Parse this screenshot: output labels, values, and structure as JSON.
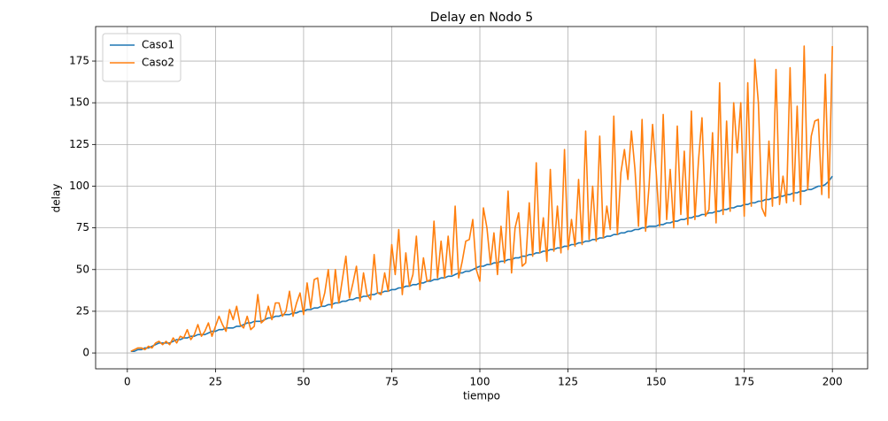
{
  "chart_data": {
    "type": "line",
    "title": "Delay en Nodo 5",
    "xlabel": "tiempo",
    "ylabel": "delay",
    "x": [
      1,
      2,
      3,
      4,
      5,
      6,
      7,
      8,
      9,
      10,
      11,
      12,
      13,
      14,
      15,
      16,
      17,
      18,
      19,
      20,
      21,
      22,
      23,
      24,
      25,
      26,
      27,
      28,
      29,
      30,
      31,
      32,
      33,
      34,
      35,
      36,
      37,
      38,
      39,
      40,
      41,
      42,
      43,
      44,
      45,
      46,
      47,
      48,
      49,
      50,
      51,
      52,
      53,
      54,
      55,
      56,
      57,
      58,
      59,
      60,
      61,
      62,
      63,
      64,
      65,
      66,
      67,
      68,
      69,
      70,
      71,
      72,
      73,
      74,
      75,
      76,
      77,
      78,
      79,
      80,
      81,
      82,
      83,
      84,
      85,
      86,
      87,
      88,
      89,
      90,
      91,
      92,
      93,
      94,
      95,
      96,
      97,
      98,
      99,
      100,
      101,
      102,
      103,
      104,
      105,
      106,
      107,
      108,
      109,
      110,
      111,
      112,
      113,
      114,
      115,
      116,
      117,
      118,
      119,
      120,
      121,
      122,
      123,
      124,
      125,
      126,
      127,
      128,
      129,
      130,
      131,
      132,
      133,
      134,
      135,
      136,
      137,
      138,
      139,
      140,
      141,
      142,
      143,
      144,
      145,
      146,
      147,
      148,
      149,
      150,
      151,
      152,
      153,
      154,
      155,
      156,
      157,
      158,
      159,
      160,
      161,
      162,
      163,
      164,
      165,
      166,
      167,
      168,
      169,
      170,
      171,
      172,
      173,
      174,
      175,
      176,
      177,
      178,
      179,
      180,
      181,
      182,
      183,
      184,
      185,
      186,
      187,
      188,
      189,
      190,
      191,
      192,
      193,
      194,
      195,
      196,
      197,
      198,
      199,
      200
    ],
    "series": [
      {
        "name": "Caso1",
        "color": "#1f77b4",
        "values": [
          1,
          1,
          2,
          2,
          3,
          3,
          4,
          5,
          6,
          6,
          6,
          6,
          7,
          8,
          8,
          9,
          9,
          10,
          10,
          11,
          11,
          11,
          12,
          13,
          13,
          14,
          14,
          15,
          15,
          15,
          16,
          16,
          17,
          18,
          18,
          19,
          19,
          19,
          20,
          21,
          21,
          22,
          22,
          23,
          23,
          23,
          24,
          24,
          25,
          25,
          26,
          26,
          27,
          27,
          28,
          28,
          29,
          29,
          30,
          30,
          31,
          31,
          32,
          32,
          33,
          33,
          34,
          34,
          35,
          35,
          36,
          36,
          37,
          37,
          38,
          38,
          39,
          39,
          40,
          40,
          41,
          41,
          42,
          42,
          43,
          43,
          44,
          44,
          45,
          45,
          46,
          46,
          47,
          48,
          48,
          49,
          49,
          50,
          51,
          52,
          52,
          53,
          53,
          54,
          54,
          55,
          55,
          56,
          56,
          57,
          57,
          58,
          58,
          59,
          59,
          60,
          60,
          61,
          61,
          62,
          62,
          63,
          63,
          64,
          64,
          65,
          65,
          66,
          66,
          67,
          67,
          68,
          68,
          69,
          69,
          70,
          70,
          71,
          71,
          72,
          72,
          73,
          73,
          74,
          74,
          75,
          75,
          76,
          76,
          76,
          77,
          77,
          78,
          78,
          79,
          79,
          80,
          80,
          81,
          81,
          82,
          82,
          83,
          83,
          84,
          84,
          85,
          85,
          86,
          86,
          87,
          87,
          88,
          88,
          89,
          89,
          90,
          90,
          91,
          91,
          92,
          92,
          93,
          93,
          94,
          94,
          95,
          95,
          96,
          96,
          97,
          97,
          98,
          98,
          99,
          100,
          100,
          101,
          103,
          106
        ]
      },
      {
        "name": "Caso2",
        "color": "#ff7f0e",
        "values": [
          1,
          2,
          3,
          3,
          2,
          4,
          3,
          6,
          7,
          5,
          7,
          5,
          9,
          6,
          10,
          9,
          14,
          8,
          11,
          17,
          10,
          13,
          18,
          10,
          16,
          22,
          17,
          13,
          26,
          20,
          28,
          17,
          15,
          22,
          14,
          16,
          35,
          18,
          20,
          28,
          20,
          30,
          30,
          22,
          25,
          37,
          22,
          30,
          36,
          23,
          42,
          27,
          44,
          45,
          28,
          36,
          50,
          27,
          50,
          30,
          44,
          58,
          33,
          42,
          52,
          31,
          48,
          35,
          32,
          59,
          36,
          35,
          48,
          37,
          65,
          47,
          74,
          35,
          60,
          40,
          47,
          70,
          38,
          57,
          43,
          44,
          79,
          45,
          67,
          45,
          70,
          47,
          88,
          45,
          55,
          67,
          68,
          80,
          50,
          43,
          87,
          75,
          53,
          72,
          47,
          76,
          54,
          97,
          48,
          75,
          84,
          52,
          54,
          90,
          58,
          114,
          60,
          81,
          55,
          110,
          61,
          88,
          60,
          122,
          62,
          80,
          64,
          104,
          65,
          133,
          68,
          100,
          67,
          130,
          69,
          88,
          74,
          142,
          71,
          108,
          122,
          104,
          133,
          110,
          76,
          140,
          73,
          100,
          137,
          109,
          76,
          143,
          80,
          110,
          75,
          136,
          83,
          121,
          77,
          145,
          80,
          115,
          141,
          82,
          86,
          132,
          78,
          162,
          83,
          139,
          85,
          150,
          120,
          150,
          82,
          162,
          88,
          176,
          150,
          87,
          82,
          127,
          88,
          170,
          89,
          106,
          90,
          171,
          91,
          148,
          89,
          184,
          98,
          130,
          139,
          140,
          95,
          167,
          93,
          184
        ]
      }
    ],
    "xlim": [
      -9,
      210
    ],
    "ylim": [
      -9.5,
      195.7
    ],
    "xticks": [
      0,
      25,
      50,
      75,
      100,
      125,
      150,
      175,
      200
    ],
    "yticks": [
      0,
      25,
      50,
      75,
      100,
      125,
      150,
      175
    ],
    "grid": true,
    "legend": "upper left"
  }
}
